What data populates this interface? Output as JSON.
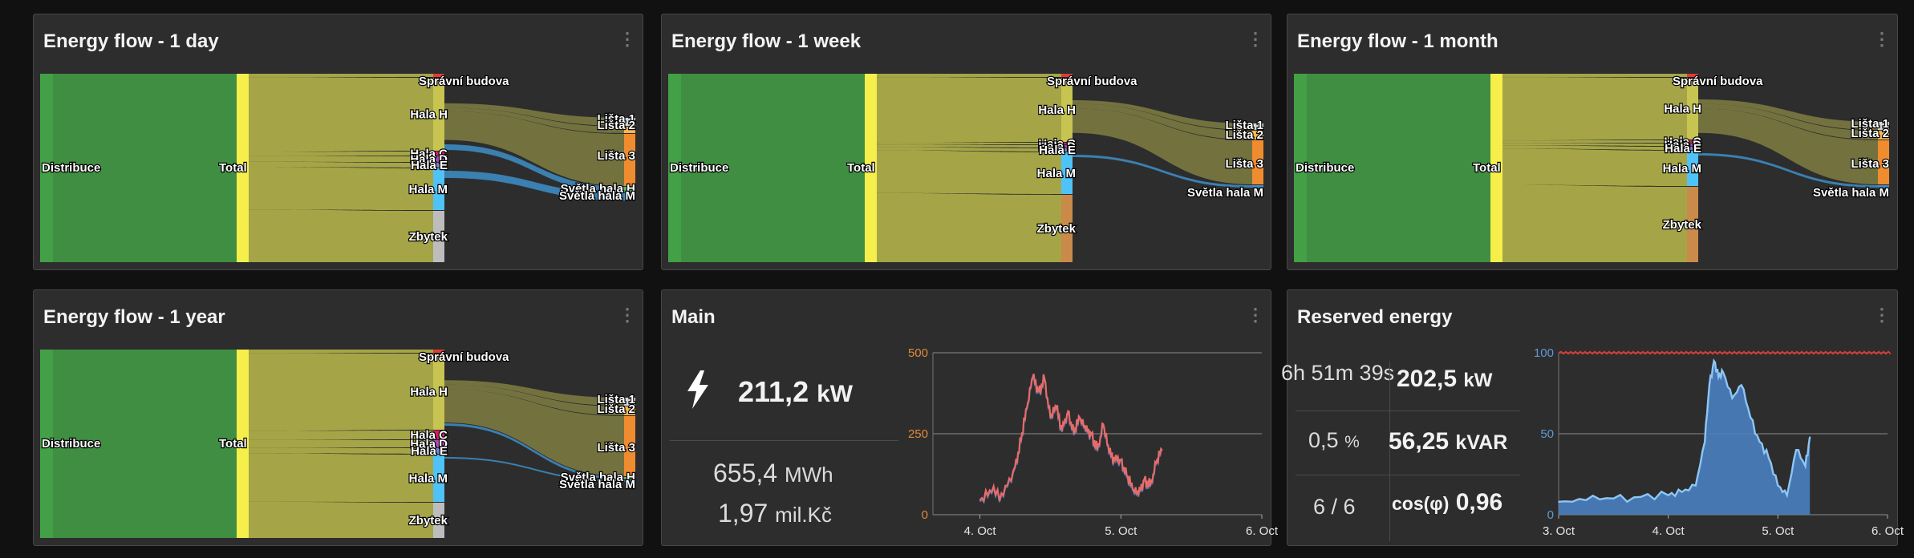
{
  "panels": [
    {
      "title": "Energy flow - 1 day"
    },
    {
      "title": "Energy flow - 1 week"
    },
    {
      "title": "Energy flow - 1 month"
    },
    {
      "title": "Energy flow - 1 year"
    },
    {
      "title": "Main"
    },
    {
      "title": "Reserved energy"
    }
  ],
  "menu_glyph": "⋮",
  "main": {
    "power_value": "211,2",
    "power_unit": "kW",
    "energy_value": "655,4",
    "energy_unit": "MWh",
    "cost_value": "1,97",
    "cost_unit": "mil.Kč",
    "icon": "lightning-bolt-icon"
  },
  "reserved": {
    "time_left": "6h 51m 39s",
    "active_power_value": "202,5",
    "active_power_unit": "kW",
    "percent_value": "0,5",
    "percent_unit": "%",
    "reactive_power_value": "56,25",
    "reactive_power_unit": "kVAR",
    "ratio": "6 / 6",
    "cos_label": "cos(φ)",
    "cos_value": "0,96"
  },
  "colors": {
    "distribuce": "#43a047",
    "total": "#f5ee4b",
    "link": "#b2b24a",
    "lista": "#ef8c30",
    "svetla": "#3d8fc9",
    "main_line": "#e86b6b",
    "main_line2": "#5b8fd9",
    "reserved_fill": "#4a7fc0",
    "reserved_line": "#8ec6f5",
    "limit_line": "#e53935"
  },
  "sankey": [
    {
      "nodes": [
        {
          "label": "Distribuce",
          "color": "#43a047"
        },
        {
          "label": "Total",
          "color": "#f5ee4b"
        },
        {
          "label": "Správní budova",
          "color": "#e53935"
        },
        {
          "label": "Hala H",
          "color": "#c7c451"
        },
        {
          "label": "Hala C",
          "color": "#d81b60"
        },
        {
          "label": "Hala D",
          "color": "#ab47bc"
        },
        {
          "label": "Hala E",
          "color": "#7986cb"
        },
        {
          "label": "Hala M",
          "color": "#4fc3f7"
        },
        {
          "label": "Zbytek",
          "color": "#bdbdbd"
        },
        {
          "label": "Lišta 1",
          "color": "#cfd8dc"
        },
        {
          "label": "Lišta 2",
          "color": "#ffb74d"
        },
        {
          "label": "Lišta 3",
          "color": "#ef8c30"
        },
        {
          "label": "Světla hala H",
          "color": "#66bb6a"
        },
        {
          "label": "Světla hala M",
          "color": "#3d8fc9"
        }
      ]
    },
    {
      "nodes": [
        {
          "label": "Distribuce",
          "color": "#43a047"
        },
        {
          "label": "Total",
          "color": "#f5ee4b"
        },
        {
          "label": "Správní budova",
          "color": "#e53935"
        },
        {
          "label": "Hala H",
          "color": "#c7c451"
        },
        {
          "label": "Hala C",
          "color": "#d81b60"
        },
        {
          "label": "Hala D",
          "color": "#ab47bc"
        },
        {
          "label": "Hala E",
          "color": "#7986cb"
        },
        {
          "label": "Hala M",
          "color": "#4fc3f7"
        },
        {
          "label": "Zbytek",
          "color": "#c98a4a"
        },
        {
          "label": "Lišta 1",
          "color": "#cfd8dc"
        },
        {
          "label": "Lišta 2",
          "color": "#ffb74d"
        },
        {
          "label": "Lišta 3",
          "color": "#ef8c30"
        },
        {
          "label": "Světla hala M",
          "color": "#3d8fc9"
        }
      ]
    },
    {
      "nodes": [
        {
          "label": "Distribuce",
          "color": "#43a047"
        },
        {
          "label": "Total",
          "color": "#f5ee4b"
        },
        {
          "label": "Správní budova",
          "color": "#e53935"
        },
        {
          "label": "Hala H",
          "color": "#c7c451"
        },
        {
          "label": "Hala C",
          "color": "#d81b60"
        },
        {
          "label": "Hala D",
          "color": "#ab47bc"
        },
        {
          "label": "Hala E",
          "color": "#7986cb"
        },
        {
          "label": "Hala M",
          "color": "#4fc3f7"
        },
        {
          "label": "Zbytek",
          "color": "#c98a4a"
        },
        {
          "label": "Lišta 1",
          "color": "#cfd8dc"
        },
        {
          "label": "Lišta 2",
          "color": "#ffb74d"
        },
        {
          "label": "Lišta 3",
          "color": "#ef8c30"
        },
        {
          "label": "Světla hala M",
          "color": "#3d8fc9"
        }
      ]
    },
    {
      "nodes": [
        {
          "label": "Distribuce",
          "color": "#43a047"
        },
        {
          "label": "Total",
          "color": "#f5ee4b"
        },
        {
          "label": "Správní budova",
          "color": "#e53935"
        },
        {
          "label": "Hala H",
          "color": "#c7c451"
        },
        {
          "label": "Hala C",
          "color": "#d81b60"
        },
        {
          "label": "Hala D",
          "color": "#ab47bc"
        },
        {
          "label": "Hala E",
          "color": "#7986cb"
        },
        {
          "label": "Hala M",
          "color": "#4fc3f7"
        },
        {
          "label": "Zbytek",
          "color": "#bdbdbd"
        },
        {
          "label": "Lišta 1",
          "color": "#cfd8dc"
        },
        {
          "label": "Lišta 2",
          "color": "#ffb74d"
        },
        {
          "label": "Lišta 3",
          "color": "#ef8c30"
        },
        {
          "label": "Světla hala H",
          "color": "#66bb6a"
        },
        {
          "label": "Světla hala M",
          "color": "#3d8fc9"
        }
      ]
    }
  ],
  "chart_data": [
    {
      "type": "line",
      "chart": "main-power",
      "x_ticks": [
        "4. Oct",
        "5. Oct",
        "6. Oct"
      ],
      "y_ticks": [
        0,
        250,
        500
      ],
      "ylim": [
        0,
        500
      ],
      "xlim": [
        "2023-10-03T16:00",
        "2023-10-06T00:00"
      ],
      "grid": true,
      "series": [
        {
          "color": "#e86b6b",
          "x": [
            "2023-10-04T00:00",
            "2023-10-04T02:00",
            "2023-10-04T04:00",
            "2023-10-04T06:00",
            "2023-10-04T07:00",
            "2023-10-04T08:00",
            "2023-10-04T09:00",
            "2023-10-04T10:00",
            "2023-10-04T11:00",
            "2023-10-04T12:00",
            "2023-10-04T13:00",
            "2023-10-04T14:00",
            "2023-10-04T15:00",
            "2023-10-04T16:00",
            "2023-10-04T17:00",
            "2023-10-04T18:00",
            "2023-10-04T19:00",
            "2023-10-04T20:00",
            "2023-10-04T21:00",
            "2023-10-04T22:00",
            "2023-10-04T23:00",
            "2023-10-05T00:00",
            "2023-10-05T01:00",
            "2023-10-05T02:00",
            "2023-10-05T03:00",
            "2023-10-05T04:00",
            "2023-10-05T05:00",
            "2023-10-05T06:00",
            "2023-10-05T07:00"
          ],
          "values": [
            45,
            70,
            60,
            150,
            230,
            330,
            425,
            380,
            420,
            300,
            330,
            260,
            320,
            250,
            300,
            260,
            250,
            200,
            280,
            190,
            170,
            170,
            120,
            80,
            60,
            110,
            90,
            160,
            200
          ]
        }
      ]
    },
    {
      "type": "area",
      "chart": "reserved-energy",
      "x_ticks": [
        "3. Oct",
        "4. Oct",
        "5. Oct",
        "6. Oct"
      ],
      "y_ticks": [
        0,
        50,
        100
      ],
      "ylim": [
        0,
        100
      ],
      "grid": true,
      "limit": 100,
      "series": [
        {
          "color": "#4a7fc0",
          "x": [
            "2023-10-03T00:00",
            "2023-10-03T06:00",
            "2023-10-03T12:00",
            "2023-10-03T18:00",
            "2023-10-04T00:00",
            "2023-10-04T03:00",
            "2023-10-04T06:00",
            "2023-10-04T08:00",
            "2023-10-04T09:00",
            "2023-10-04T10:00",
            "2023-10-04T11:00",
            "2023-10-04T12:00",
            "2023-10-04T14:00",
            "2023-10-04T16:00",
            "2023-10-04T18:00",
            "2023-10-04T20:00",
            "2023-10-04T22:00",
            "2023-10-05T00:00",
            "2023-10-05T02:00",
            "2023-10-05T04:00",
            "2023-10-05T06:00",
            "2023-10-05T07:00"
          ],
          "values": [
            8,
            9,
            10,
            11,
            12,
            14,
            18,
            45,
            80,
            95,
            85,
            88,
            72,
            80,
            60,
            45,
            35,
            18,
            12,
            40,
            30,
            48
          ]
        }
      ]
    }
  ]
}
